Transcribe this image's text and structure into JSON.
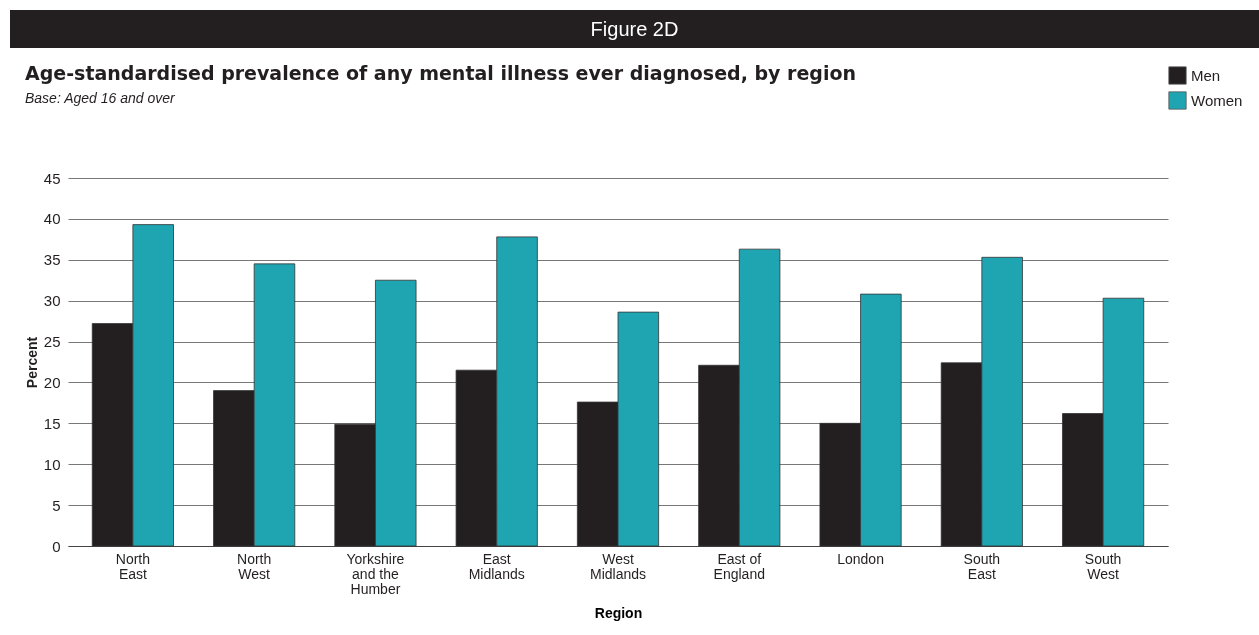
{
  "chart_data": {
    "type": "bar",
    "title": "Age-standardised prevalence of any mental illness ever diagnosed, by region",
    "subtitle": "Base: Aged 16 and over",
    "annotations": [
      "Figure 2D"
    ],
    "xlabel": "Region",
    "ylabel": "Percent",
    "categories": [
      "North East",
      "North West",
      "Yorkshire and the Humber",
      "East Midlands",
      "West Midlands",
      "East of England",
      "London",
      "South East",
      "South West"
    ],
    "series": [
      {
        "name": "Men",
        "color": "#231f20",
        "values": [
          27.2,
          19.0,
          14.9,
          21.5,
          17.6,
          22.1,
          15.0,
          22.4,
          16.2
        ]
      },
      {
        "name": "Women",
        "color": "#1fa5b2",
        "values": [
          39.3,
          34.5,
          32.5,
          37.8,
          28.6,
          36.3,
          30.8,
          35.3,
          30.3
        ]
      }
    ],
    "ylim": [
      0,
      45
    ],
    "yticks": [
      0,
      5,
      10,
      15,
      20,
      25,
      30,
      35,
      40,
      45
    ],
    "grid": "y",
    "legend": "top right"
  }
}
